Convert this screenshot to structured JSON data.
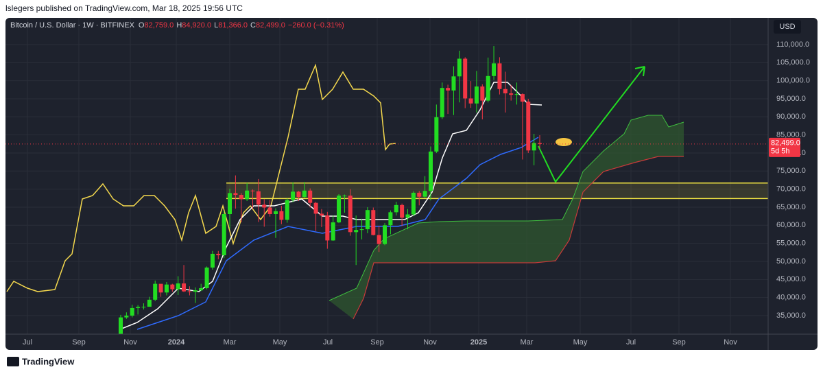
{
  "header": {
    "publisher": "lslegers published on TradingView.com, Mar 18, 2025 19:56 UTC",
    "footer": "TradingView"
  },
  "chart_data": {
    "type": "candlestick",
    "title": "Bitcoin / U.S. Dollar · 1W · BITFINEX",
    "ohlc_legend": {
      "o_label": "O",
      "o": "82,759.0",
      "h_label": "H",
      "h": "84,920.0",
      "l_label": "L",
      "l": "81,366.0",
      "c_label": "C",
      "c": "82,499.0",
      "change": "−260.0 (−0.31%)"
    },
    "currency": "USD",
    "last_price": 82499,
    "last_price_label": "82,499.0",
    "countdown": "5d 5h",
    "xtick_labels": [
      "Jul",
      "Sep",
      "Nov",
      "2024",
      "Mar",
      "May",
      "Jul",
      "Sep",
      "Nov",
      "2025",
      "Mar",
      "May",
      "Jul",
      "Sep",
      "Nov"
    ],
    "open": [
      29900,
      34500,
      35000,
      37100,
      37400,
      37450,
      39400,
      43800,
      41400,
      43600,
      42300,
      43900,
      41700,
      41600,
      42000,
      42600,
      48300,
      52100,
      51700,
      63100,
      68900,
      68400,
      67200,
      69600,
      69400,
      65700,
      64900,
      63100,
      63900,
      61500,
      67000,
      69300,
      67800,
      69600,
      66200,
      63200,
      62700,
      55800,
      60800,
      68200,
      68200,
      58100,
      58700,
      58900,
      64200,
      57300,
      54800,
      60000,
      63600,
      65600,
      62100,
      63000,
      69000,
      67900,
      69500,
      80400,
      89900,
      98000,
      97300,
      101200,
      106100,
      95100,
      93700,
      98400,
      94500,
      101300,
      104800,
      97700,
      96500,
      96100,
      96300,
      94200,
      80700,
      82759
    ],
    "high": [
      35200,
      35900,
      38000,
      37900,
      38400,
      40200,
      44700,
      43500,
      44300,
      43800,
      45900,
      49000,
      43100,
      42800,
      43800,
      48600,
      52900,
      52900,
      64000,
      70100,
      73800,
      68900,
      71700,
      69900,
      72800,
      67200,
      67000,
      64700,
      65400,
      67400,
      71900,
      69500,
      72000,
      70200,
      66500,
      64500,
      63700,
      62700,
      68600,
      68500,
      70000,
      62700,
      61800,
      65000,
      64900,
      59800,
      60600,
      64100,
      66500,
      66000,
      64500,
      69400,
      69500,
      73600,
      81800,
      93400,
      99500,
      98900,
      104000,
      108300,
      106500,
      99900,
      102700,
      99000,
      106400,
      109600,
      106500,
      102500,
      98800,
      99500,
      96500,
      95000,
      85300,
      84920
    ],
    "low": [
      29800,
      34100,
      34500,
      35300,
      36700,
      37500,
      39000,
      40200,
      40600,
      41600,
      40700,
      41500,
      40600,
      38500,
      41800,
      42300,
      47700,
      50600,
      50900,
      59000,
      64600,
      60800,
      66700,
      64500,
      60900,
      59600,
      62400,
      56500,
      60300,
      60700,
      66400,
      66700,
      67600,
      64900,
      58400,
      59500,
      53500,
      55700,
      60600,
      63500,
      57100,
      49000,
      56100,
      57800,
      57200,
      52600,
      54500,
      57500,
      62700,
      59800,
      58900,
      62500,
      65500,
      67500,
      66900,
      80000,
      89400,
      90800,
      90500,
      94000,
      92400,
      92500,
      91200,
      89300,
      94000,
      100200,
      96200,
      91200,
      94500,
      93400,
      78200,
      80000,
      76600,
      81366
    ],
    "close": [
      34500,
      35000,
      37100,
      37400,
      37450,
      39400,
      43800,
      41400,
      43600,
      42300,
      43900,
      41700,
      41600,
      42000,
      42600,
      48300,
      52100,
      51700,
      63100,
      68900,
      68400,
      67200,
      69600,
      69400,
      65700,
      64900,
      63100,
      63900,
      61500,
      67000,
      69300,
      67800,
      69600,
      66200,
      63200,
      62700,
      55800,
      60800,
      68200,
      68200,
      58100,
      58700,
      58900,
      64200,
      57300,
      54800,
      60000,
      63600,
      65600,
      62100,
      63000,
      69000,
      67900,
      69500,
      80400,
      89900,
      98000,
      97300,
      101200,
      106100,
      95100,
      93700,
      98400,
      94500,
      101300,
      104800,
      97700,
      96500,
      96100,
      96300,
      94200,
      80700,
      82800,
      82499
    ],
    "up_color": "#22dd22",
    "down_color": "#f23645",
    "zone": [
      67400,
      71700
    ],
    "zone_color": "#f5e642",
    "ylim": [
      29870,
      117400
    ],
    "yticks": [
      {
        "value": 35000,
        "label": "35,000.0"
      },
      {
        "value": 40000,
        "label": "40,000.0"
      },
      {
        "value": 45000,
        "label": "45,000.0"
      },
      {
        "value": 50000,
        "label": "50,000.0"
      },
      {
        "value": 55000,
        "label": "55,000.0"
      },
      {
        "value": 60000,
        "label": "60,000.0"
      },
      {
        "value": 65000,
        "label": "65,000.0"
      },
      {
        "value": 70000,
        "label": "70,000.0"
      },
      {
        "value": 75000,
        "label": "75,000.0"
      },
      {
        "value": 80000,
        "label": "80,000.0"
      },
      {
        "value": 85000,
        "label": "85,000.0"
      },
      {
        "value": 90000,
        "label": "90,000.0"
      },
      {
        "value": 95000,
        "label": "95,000.0"
      },
      {
        "value": 100000,
        "label": "100,000.0"
      },
      {
        "value": 105000,
        "label": "105,000.0"
      },
      {
        "value": 110000,
        "label": "110,000.0"
      }
    ],
    "grid": true
  }
}
